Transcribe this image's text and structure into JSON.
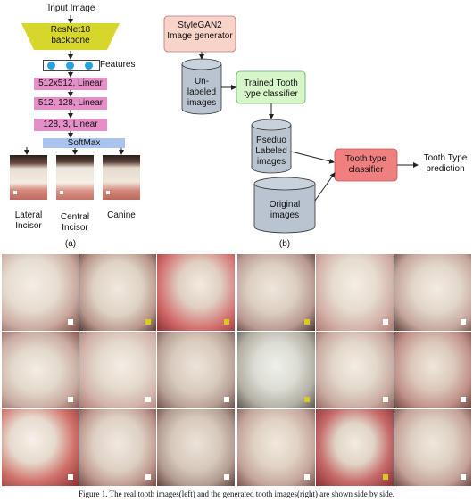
{
  "panel_a": {
    "input_label": "Input Image",
    "backbone_label": "ResNet18\nbackbone",
    "features_label": "Features",
    "layers": [
      "512x512, Linear",
      "512, 128, Linear",
      "128, 3, Linear"
    ],
    "softmax_label": "SoftMax",
    "class_labels": [
      "Lateral\nIncisor",
      "Central\nIncisor",
      "Canine"
    ],
    "panel_label": "(a)"
  },
  "panel_b": {
    "generator_label": "StyleGAN2\nImage generator",
    "unlabeled_label": "Un-\nlabeled\nimages",
    "trained_classifier_label": "Trained Tooth\ntype classifier",
    "pseudo_label": "Pseduo\nLabeled\nimages",
    "original_label": "Original\nimages",
    "tooth_classifier_label": "Tooth type\nclassifier",
    "prediction_label": "Tooth Type\nprediction",
    "panel_label": "(b)"
  },
  "caption": "Figure 1. The real tooth images(left) and the generated tooth images(right) are shown side by side.",
  "colors": {
    "backbone": "#d6d62c",
    "linear": "#e58ec7",
    "softmax": "#a9c4ee",
    "generator": "#f8d3c8",
    "classifier_green": "#d6f5c8",
    "classifier_red": "#f08080",
    "cylinder": "#b9c4d0"
  }
}
